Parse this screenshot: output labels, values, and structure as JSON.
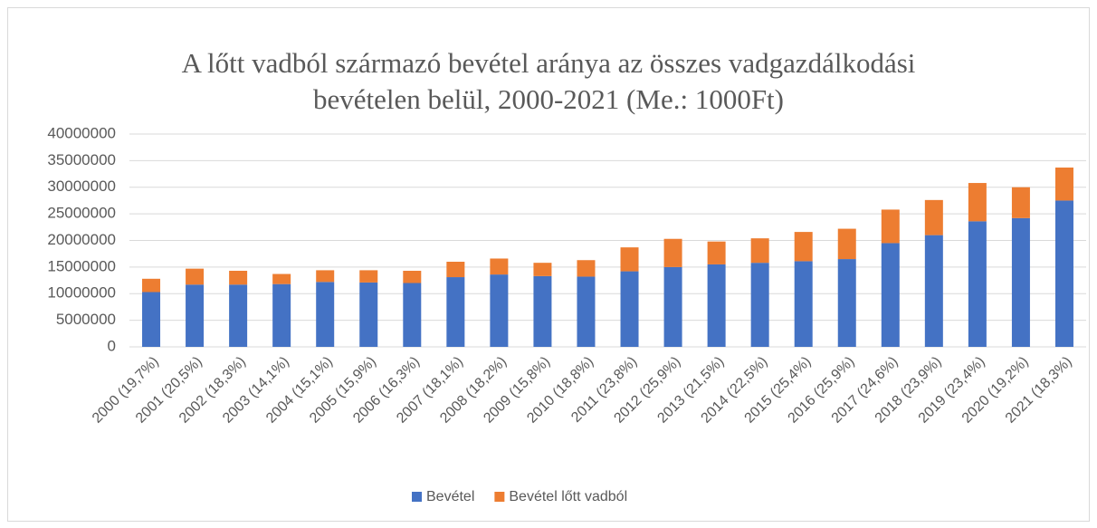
{
  "chart_data": {
    "type": "stacked-bar",
    "title": "A lőtt vadból származó bevétel aránya az összes vadgazdálkodási bevételen belül, 2000-2021 (Me.: 1000Ft)",
    "categories": [
      "2000 (19,7%)",
      "2001 (20,5%)",
      "2002 (18,3%)",
      "2003 (14,1%)",
      "2004 (15,1%)",
      "2005 (15,9%)",
      "2006 (16,3%)",
      "2007 (18,1%)",
      "2008 (18,2%)",
      "2009 (15,8%)",
      "2010 (18,8%)",
      "2011 (23,8%)",
      "2012 (25,9%)",
      "2013 (21,5%)",
      "2014 (22,5%)",
      "2015 (25,4%)",
      "2016 (25,9%)",
      "2017 (24,6%)",
      "2018 (23,9%)",
      "2019 (23,4%)",
      "2020 (19,2%)",
      "2021 (18,3%)"
    ],
    "series": [
      {
        "name": "Bevétel",
        "color": "#4472c4",
        "values": [
          10300000,
          11700000,
          11700000,
          11800000,
          12200000,
          12100000,
          12000000,
          13100000,
          13600000,
          13300000,
          13200000,
          14200000,
          15000000,
          15500000,
          15800000,
          16100000,
          16500000,
          19500000,
          21000000,
          23600000,
          24200000,
          27500000
        ]
      },
      {
        "name": "Bevétel lőtt vadból",
        "color": "#ed7d31",
        "values": [
          2500000,
          3000000,
          2600000,
          1900000,
          2200000,
          2300000,
          2300000,
          2900000,
          3000000,
          2500000,
          3100000,
          4500000,
          5300000,
          4300000,
          4600000,
          5500000,
          5700000,
          6300000,
          6600000,
          7200000,
          5800000,
          6200000
        ]
      }
    ],
    "ylim": [
      0,
      40000000
    ],
    "yticks": [
      0,
      5000000,
      10000000,
      15000000,
      20000000,
      25000000,
      30000000,
      35000000,
      40000000
    ],
    "grid": true,
    "legend": "bottom"
  }
}
